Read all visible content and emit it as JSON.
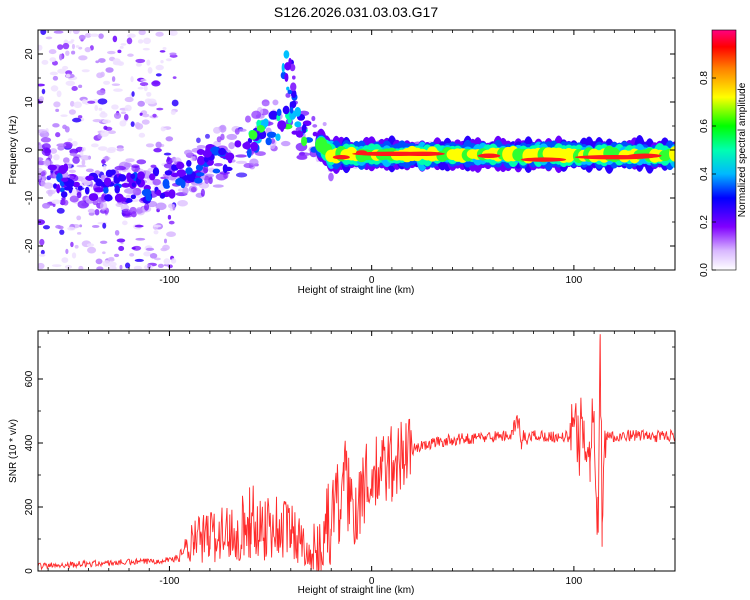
{
  "title": "S126.2026.031.03.03.G17",
  "colors": {
    "trace": "#ff2a2a",
    "axis": "#000000",
    "background": "#ffffff"
  },
  "chart_data": [
    {
      "type": "heatmap",
      "name": "spectrogram",
      "xlabel": "Height of straight line (km)",
      "ylabel": "Frequency (Hz)",
      "xlim": [
        -165,
        150
      ],
      "ylim": [
        -25,
        25
      ],
      "xticks": [
        -100,
        0,
        100
      ],
      "xtick_labels": [
        "-100",
        "0",
        "100"
      ],
      "yticks": [
        -20,
        -10,
        0,
        10,
        20
      ],
      "ytick_labels": [
        "-20",
        "-10",
        "0",
        "10",
        "20"
      ],
      "colorbar": {
        "label": "Normalized spectral amplitude",
        "range": [
          0,
          1
        ],
        "ticks": [
          0.0,
          0.2,
          0.4,
          0.6,
          0.8
        ],
        "tick_labels": [
          "0.0",
          "0.2",
          "0.4",
          "0.6",
          "0.8"
        ]
      },
      "ridge": [
        {
          "x": -160,
          "y": -6
        },
        {
          "x": -140,
          "y": -7
        },
        {
          "x": -120,
          "y": -8
        },
        {
          "x": -100,
          "y": -7
        },
        {
          "x": -90,
          "y": -5
        },
        {
          "x": -80,
          "y": -2
        },
        {
          "x": -70,
          "y": -1
        },
        {
          "x": -60,
          "y": 2
        },
        {
          "x": -50,
          "y": 5
        },
        {
          "x": -40,
          "y": 6
        },
        {
          "x": -30,
          "y": 3
        },
        {
          "x": -20,
          "y": -1
        },
        {
          "x": 0,
          "y": -1
        },
        {
          "x": 50,
          "y": -1
        },
        {
          "x": 100,
          "y": -1
        },
        {
          "x": 150,
          "y": -1
        }
      ]
    },
    {
      "type": "line",
      "name": "snr",
      "xlabel": "Height of straight line (km)",
      "ylabel": "SNR (10 * v/v)",
      "xlim": [
        -165,
        150
      ],
      "ylim": [
        0,
        750
      ],
      "xticks": [
        -100,
        0,
        100
      ],
      "xtick_labels": [
        "-100",
        "0",
        "100"
      ],
      "yticks": [
        0,
        200,
        400,
        600
      ],
      "ytick_labels": [
        "0",
        "200",
        "400",
        "600"
      ],
      "series": [
        {
          "name": "SNR",
          "x": [
            -165,
            -150,
            -130,
            -110,
            -95,
            -88,
            -80,
            -70,
            -60,
            -50,
            -40,
            -32,
            -27,
            -25,
            -22,
            -20,
            -18,
            -16,
            -14,
            -12,
            -10,
            -8,
            -5,
            0,
            5,
            10,
            15,
            20,
            30,
            40,
            50,
            60,
            70,
            72,
            74,
            80,
            90,
            98,
            100,
            102,
            105,
            108,
            110,
            112,
            113,
            114,
            116,
            120,
            130,
            140,
            150
          ],
          "y": [
            15,
            20,
            25,
            30,
            40,
            90,
            110,
            120,
            150,
            140,
            130,
            70,
            20,
            60,
            170,
            110,
            280,
            160,
            340,
            230,
            250,
            180,
            260,
            280,
            310,
            340,
            360,
            380,
            400,
            410,
            415,
            420,
            425,
            480,
            400,
            425,
            420,
            420,
            450,
            380,
            470,
            340,
            500,
            120,
            740,
            150,
            430,
            420,
            425,
            420,
            425
          ]
        }
      ]
    }
  ]
}
